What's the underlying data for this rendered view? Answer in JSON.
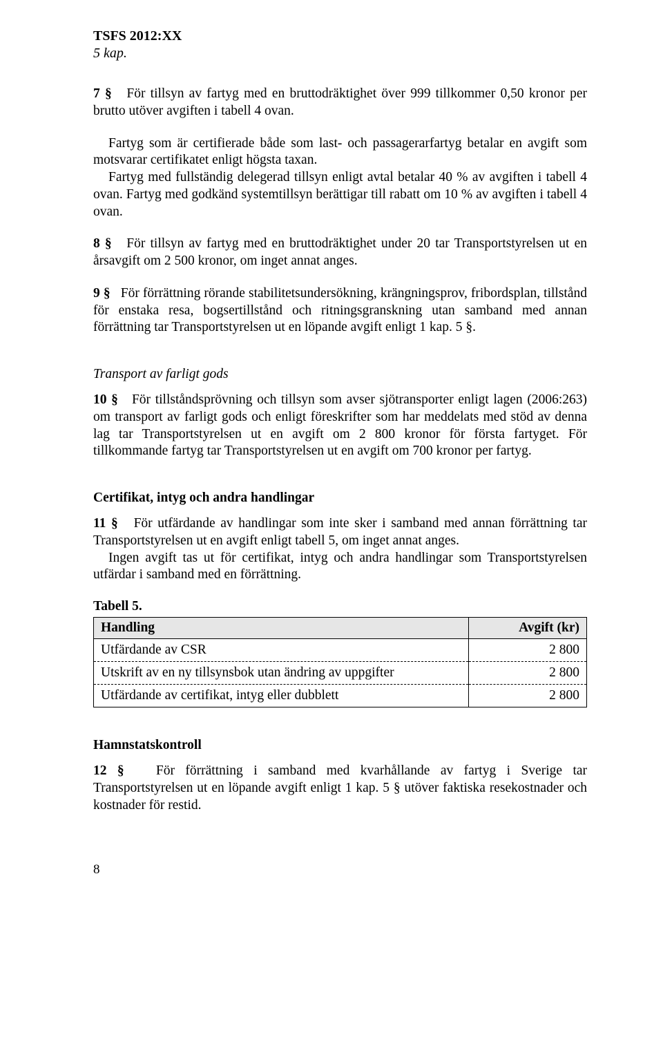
{
  "header": {
    "doc_ref": "TSFS 2012:XX",
    "chapter": "5 kap."
  },
  "paragraphs": {
    "p7a": "7 §   För tillsyn av fartyg med en bruttodräktighet över 999 tillkommer 0,50 kronor per brutto utöver avgiften i tabell 4 ovan.",
    "p7b": "Fartyg som är certifierade både som last- och passagerarfartyg betalar en avgift som motsvarar certifikatet enligt högsta taxan.",
    "p7c": "Fartyg med fullständig delegerad tillsyn enligt avtal betalar 40 % av avgiften i tabell 4 ovan. Fartyg med godkänd systemtillsyn berättigar till rabatt om 10 % av avgiften i tabell 4 ovan.",
    "p8": "8 §   För tillsyn av fartyg med en bruttodräktighet under 20 tar Transportstyrelsen ut en årsavgift om 2 500 kronor, om inget annat anges.",
    "p9": "9 §   För förrättning rörande stabilitetsundersökning, krängningsprov, fribordsplan, tillstånd för enstaka resa, bogsertillstånd och ritningsgranskning utan samband med annan förrättning tar Transportstyrelsen ut en löpande avgift enligt 1 kap. 5 §.",
    "transport_title": "Transport av farligt gods",
    "p10": "10 §   För tillståndsprövning och tillsyn som avser sjötransporter enligt lagen (2006:263) om transport av farligt gods och enligt föreskrifter som har meddelats med stöd av denna lag tar Transportstyrelsen ut en avgift om 2 800 kronor för första fartyget. För tillkommande fartyg tar Transportstyrelsen ut en avgift om 700 kronor per fartyg.",
    "cert_title": "Certifikat, intyg och andra handlingar",
    "p11a": "11 §   För utfärdande av handlingar som inte sker i samband med annan förrättning tar Transportstyrelsen ut en avgift enligt tabell 5, om inget annat anges.",
    "p11b": "Ingen avgift tas ut för certifikat, intyg och andra handlingar som Transportstyrelsen utfärdar i samband med en förrättning.",
    "table5_caption": "Tabell 5.",
    "hamn_title": "Hamnstatskontroll",
    "p12": "12 §   För förrättning i samband med kvarhållande av fartyg i Sverige tar Transportstyrelsen ut en löpande avgift enligt 1 kap. 5 § utöver faktiska resekostnader och kostnader för restid."
  },
  "table5": {
    "headers": {
      "col1": "Handling",
      "col2": "Avgift (kr)"
    },
    "rows": [
      {
        "label": "Utfärdande av CSR",
        "value": "2 800"
      },
      {
        "label": "Utskrift av en ny tillsynsbok utan ändring av uppgifter",
        "value": "2 800"
      },
      {
        "label": "Utfärdande av certifikat, intyg eller dubblett",
        "value": "2 800"
      }
    ]
  },
  "page_number": "8"
}
